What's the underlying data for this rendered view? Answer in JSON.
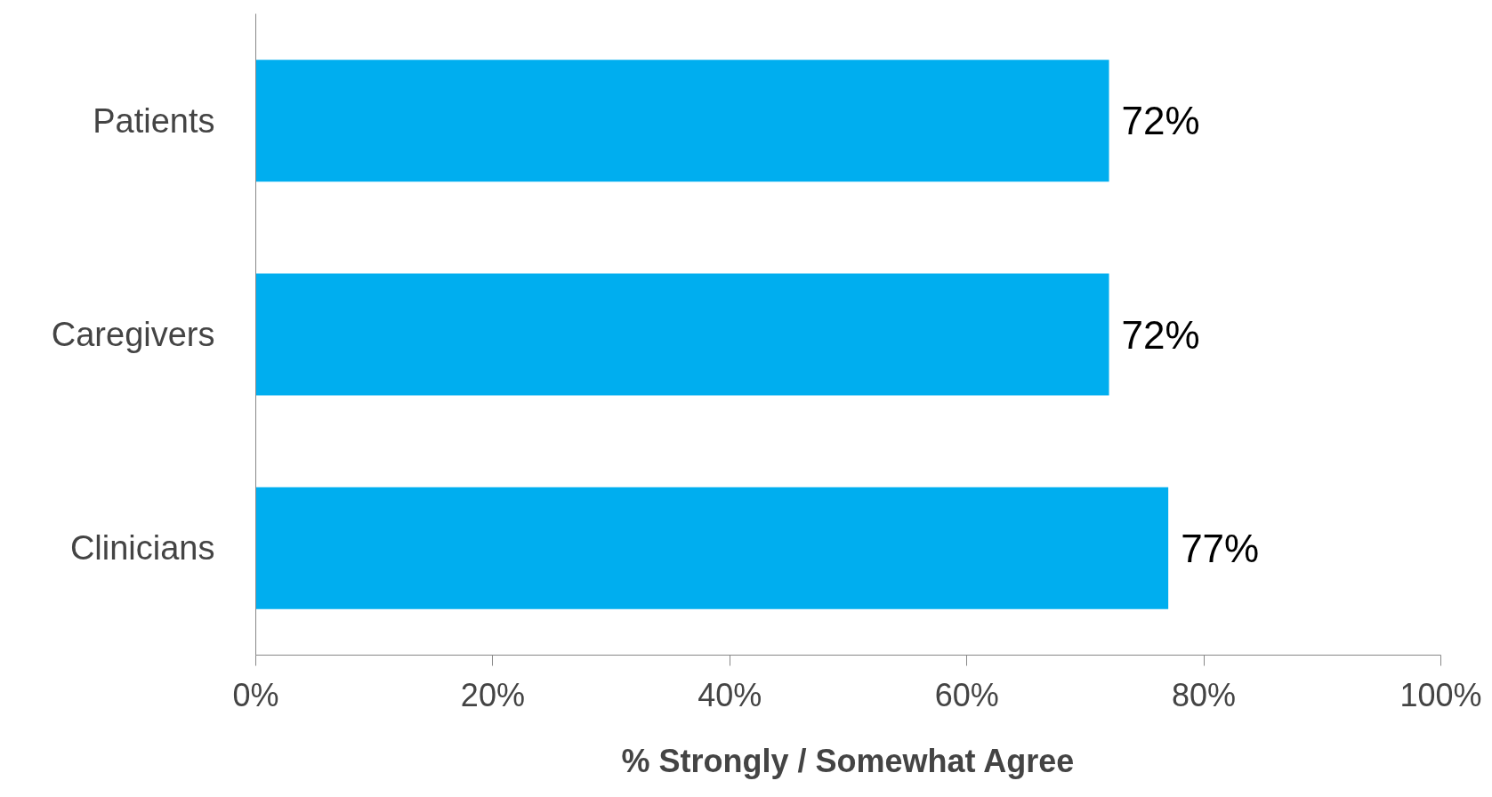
{
  "chart_data": {
    "type": "bar",
    "orientation": "horizontal",
    "xlabel": "% Strongly / Somewhat Agree",
    "categories": [
      "Patients",
      "Caregivers",
      "Clinicians"
    ],
    "values": [
      72,
      72,
      77
    ],
    "color": "#00aeef",
    "value_labels": [
      "72%",
      "72%",
      "77%"
    ],
    "xlim": [
      0,
      100
    ],
    "xticks": [
      {
        "value": 0,
        "label": "0%"
      },
      {
        "value": 20,
        "label": "20%"
      },
      {
        "value": 40,
        "label": "40%"
      },
      {
        "value": 60,
        "label": "60%"
      },
      {
        "value": 80,
        "label": "80%"
      },
      {
        "value": 100,
        "label": "100%"
      }
    ]
  }
}
